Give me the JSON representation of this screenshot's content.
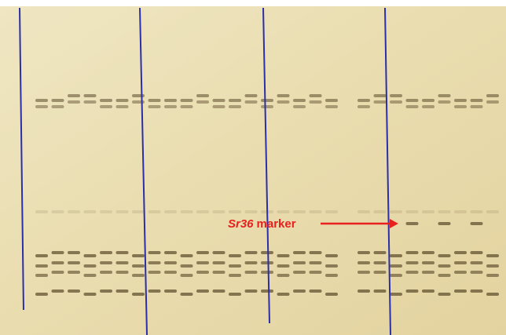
{
  "annotation": {
    "gene": "Sr36",
    "label": "marker"
  }
}
